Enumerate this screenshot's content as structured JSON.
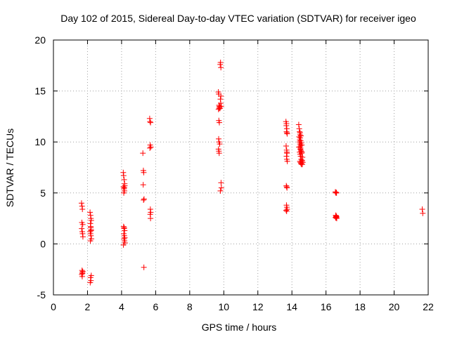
{
  "chart_data": {
    "type": "scatter",
    "title": "Day 102 of 2015, Sidereal Day-to-day VTEC variation (SDTVAR) for receiver igeo",
    "xlabel": "GPS time / hours",
    "ylabel": "SDTVAR / TECUs",
    "xlim": [
      0,
      22
    ],
    "ylim": [
      -5,
      20
    ],
    "xticks": [
      0,
      2,
      4,
      6,
      8,
      10,
      12,
      14,
      16,
      18,
      20,
      22
    ],
    "yticks": [
      -5,
      0,
      5,
      10,
      15,
      20
    ],
    "grid": true,
    "marker": "+",
    "marker_color": "#ff0000",
    "series": [
      {
        "name": "SDTVAR",
        "x": [
          1.65,
          1.68,
          1.7,
          1.67,
          1.72,
          1.66,
          1.69,
          1.71,
          1.73,
          1.68,
          1.7,
          1.66,
          1.69,
          1.72,
          1.7,
          2.15,
          2.18,
          2.2,
          2.22,
          2.17,
          2.19,
          2.21,
          2.16,
          2.18,
          2.2,
          2.23,
          2.17,
          2.19,
          2.21,
          2.18,
          2.2,
          2.16,
          2.22,
          4.1,
          4.12,
          4.15,
          4.18,
          4.11,
          4.14,
          4.17,
          4.13,
          4.16,
          4.19,
          4.12,
          4.15,
          4.18,
          4.13,
          4.16,
          4.14,
          4.17,
          4.2,
          4.11,
          4.19,
          4.15,
          5.25,
          5.28,
          5.3,
          5.27,
          5.32,
          5.29,
          5.31,
          5.65,
          5.67,
          5.7,
          5.68,
          5.72,
          5.66,
          5.69,
          5.71,
          5.68,
          5.7,
          9.68,
          9.7,
          9.72,
          9.75,
          9.69,
          9.73,
          9.71,
          9.74,
          9.7,
          9.72,
          9.76,
          9.69,
          9.71,
          9.73,
          9.75,
          9.78,
          9.8,
          9.82,
          9.85,
          9.79,
          9.83,
          9.81,
          9.84,
          9.86,
          9.8,
          9.83,
          13.65,
          13.67,
          13.7,
          13.68,
          13.72,
          13.66,
          13.69,
          13.71,
          13.68,
          13.7,
          13.73,
          13.67,
          13.69,
          13.71,
          13.68,
          13.7,
          13.72,
          13.66,
          13.69,
          13.71,
          13.68,
          13.7,
          14.4,
          14.43,
          14.45,
          14.48,
          14.42,
          14.46,
          14.44,
          14.47,
          14.5,
          14.41,
          14.49,
          14.52,
          14.45,
          14.48,
          14.51,
          14.54,
          14.47,
          14.5,
          14.53,
          14.56,
          14.49,
          14.52,
          14.55,
          14.58,
          14.51,
          14.54,
          14.57,
          14.6,
          14.48,
          14.53,
          14.56,
          14.59,
          14.62,
          14.55,
          14.58,
          14.61,
          14.64,
          16.55,
          16.58,
          16.6,
          16.62,
          16.57,
          16.59,
          16.61,
          16.63,
          16.56,
          16.6,
          16.62,
          16.58,
          21.65,
          21.68
        ],
        "y": [
          4.0,
          3.7,
          3.4,
          2.1,
          1.9,
          1.5,
          1.2,
          1.0,
          0.7,
          -2.6,
          -2.8,
          -3.0,
          -3.2,
          -2.7,
          -2.9,
          3.1,
          2.8,
          2.5,
          2.3,
          2.0,
          1.6,
          1.4,
          1.2,
          1.0,
          0.8,
          0.5,
          0.3,
          1.7,
          1.3,
          -3.3,
          -3.6,
          -3.8,
          -3.1,
          7.0,
          6.7,
          6.3,
          5.9,
          5.6,
          5.4,
          5.2,
          5.0,
          5.5,
          5.7,
          1.7,
          1.5,
          1.3,
          1.0,
          0.8,
          0.5,
          0.3,
          0.1,
          -0.1,
          0.6,
          1.6,
          8.9,
          7.2,
          7.0,
          5.8,
          4.4,
          4.3,
          -2.3,
          12.3,
          12.0,
          11.9,
          9.7,
          9.5,
          9.4,
          3.4,
          3.1,
          2.9,
          2.5,
          14.9,
          14.7,
          13.6,
          13.4,
          13.2,
          13.3,
          12.1,
          11.9,
          10.3,
          10.0,
          9.8,
          9.3,
          9.1,
          8.9,
          13.5,
          13.3,
          14.2,
          13.8,
          13.5,
          17.6,
          17.3,
          17.8,
          6.0,
          5.5,
          5.2,
          14.5,
          12.0,
          11.6,
          11.3,
          11.0,
          10.8,
          9.6,
          9.2,
          8.9,
          8.6,
          8.3,
          8.1,
          5.7,
          5.6,
          5.5,
          3.8,
          3.6,
          3.4,
          3.3,
          3.2,
          10.9,
          11.8,
          9.0,
          11.7,
          11.3,
          11.0,
          10.7,
          10.5,
          10.2,
          10.0,
          9.8,
          9.6,
          9.5,
          9.3,
          9.2,
          9.0,
          8.8,
          8.6,
          8.3,
          8.1,
          8.0,
          7.9,
          7.8,
          10.4,
          10.1,
          9.9,
          9.7,
          9.4,
          9.1,
          8.9,
          8.2,
          10.9,
          10.6,
          9.7,
          9.0,
          8.5,
          7.9,
          8.1,
          7.8,
          8.0,
          5.1,
          5.0,
          5.05,
          5.0,
          2.8,
          2.7,
          2.6,
          2.5,
          2.6,
          2.75,
          2.65,
          2.55,
          3.4,
          3.0
        ]
      }
    ]
  }
}
